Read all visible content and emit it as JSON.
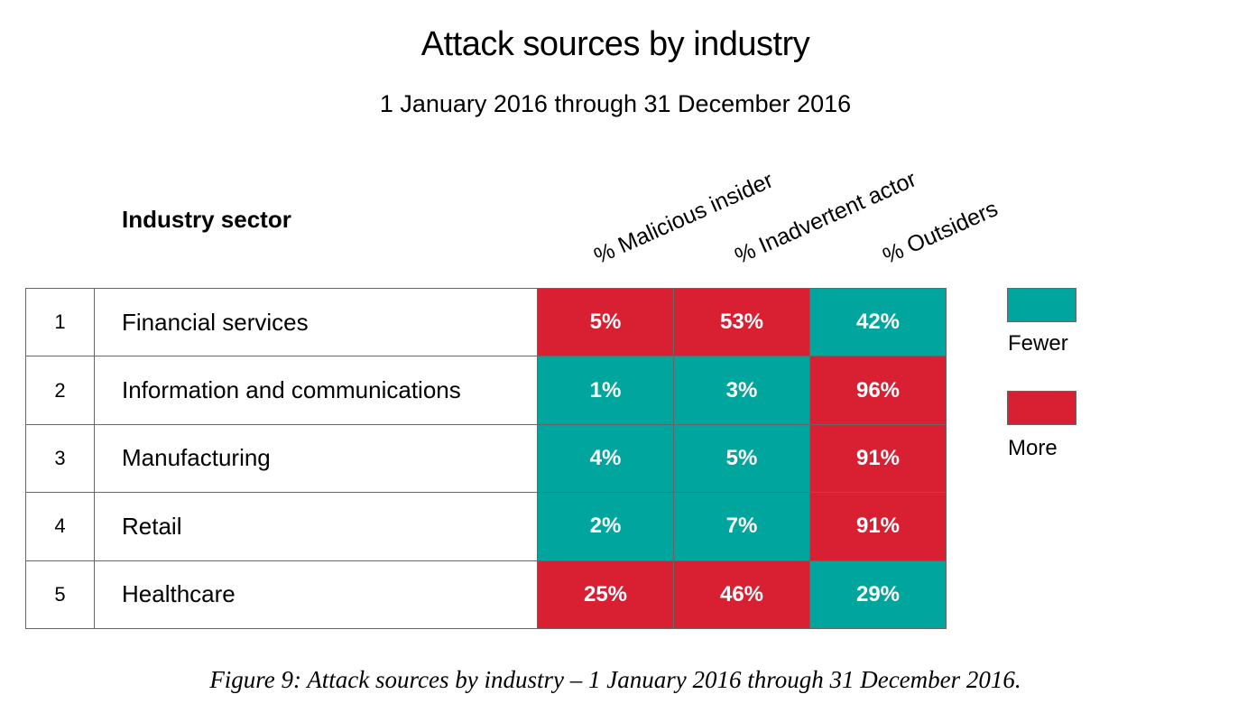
{
  "chart_data": {
    "type": "heatmap",
    "title": "Attack sources by industry",
    "subtitle": "1 January 2016 through 31 December 2016",
    "row_header": "Industry sector",
    "columns": [
      "% Malicious insider",
      "% Inadvertent actor",
      "% Outsiders"
    ],
    "rows": [
      {
        "rank": "1",
        "sector": "Financial services",
        "values": [
          5,
          53,
          42
        ],
        "labels": [
          "5%",
          "53%",
          "42%"
        ],
        "levels": [
          "more",
          "more",
          "fewer"
        ]
      },
      {
        "rank": "2",
        "sector": "Information and communications",
        "values": [
          1,
          3,
          96
        ],
        "labels": [
          "1%",
          "3%",
          "96%"
        ],
        "levels": [
          "fewer",
          "fewer",
          "more"
        ]
      },
      {
        "rank": "3",
        "sector": "Manufacturing",
        "values": [
          4,
          5,
          91
        ],
        "labels": [
          "4%",
          "5%",
          "91%"
        ],
        "levels": [
          "fewer",
          "fewer",
          "more"
        ]
      },
      {
        "rank": "4",
        "sector": "Retail",
        "values": [
          2,
          7,
          91
        ],
        "labels": [
          "2%",
          "7%",
          "91%"
        ],
        "levels": [
          "fewer",
          "fewer",
          "more"
        ]
      },
      {
        "rank": "5",
        "sector": "Healthcare",
        "values": [
          25,
          46,
          29
        ],
        "labels": [
          "25%",
          "46%",
          "29%"
        ],
        "levels": [
          "more",
          "more",
          "fewer"
        ]
      }
    ],
    "legend": {
      "placement": "right",
      "fewer": {
        "label": "Fewer",
        "color": "#00a59e"
      },
      "more": {
        "label": "More",
        "color": "#d91f32"
      }
    }
  },
  "caption": "Figure 9: Attack sources by industry  –  1 January 2016 through 31 December 2016."
}
